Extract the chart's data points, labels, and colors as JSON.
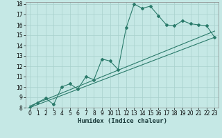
{
  "title": "",
  "xlabel": "Humidex (Indice chaleur)",
  "ylabel": "",
  "background_color": "#c5e8e5",
  "grid_color": "#a8d0cc",
  "line_color": "#2a7a6a",
  "xlim": [
    -0.5,
    23.5
  ],
  "ylim": [
    8,
    18.2
  ],
  "xticks": [
    0,
    1,
    2,
    3,
    4,
    5,
    6,
    7,
    8,
    9,
    10,
    11,
    12,
    13,
    14,
    15,
    16,
    17,
    18,
    19,
    20,
    21,
    22,
    23
  ],
  "yticks": [
    8,
    9,
    10,
    11,
    12,
    13,
    14,
    15,
    16,
    17,
    18
  ],
  "scatter_x": [
    0,
    1,
    2,
    3,
    4,
    5,
    6,
    7,
    8,
    9,
    10,
    11,
    12,
    13,
    14,
    15,
    16,
    17,
    18,
    19,
    20,
    21,
    22,
    23
  ],
  "scatter_y": [
    8.0,
    8.5,
    8.9,
    8.3,
    10.0,
    10.3,
    9.8,
    11.0,
    10.7,
    12.7,
    12.5,
    11.7,
    15.7,
    18.0,
    17.6,
    17.8,
    16.9,
    16.0,
    15.9,
    16.4,
    16.1,
    16.0,
    15.9,
    14.8
  ],
  "line1_x": [
    0,
    23
  ],
  "line1_y": [
    8.0,
    14.8
  ],
  "line2_x": [
    0,
    23
  ],
  "line2_y": [
    8.15,
    15.4
  ],
  "xlabel_fontsize": 6.5,
  "tick_fontsize": 5.5
}
